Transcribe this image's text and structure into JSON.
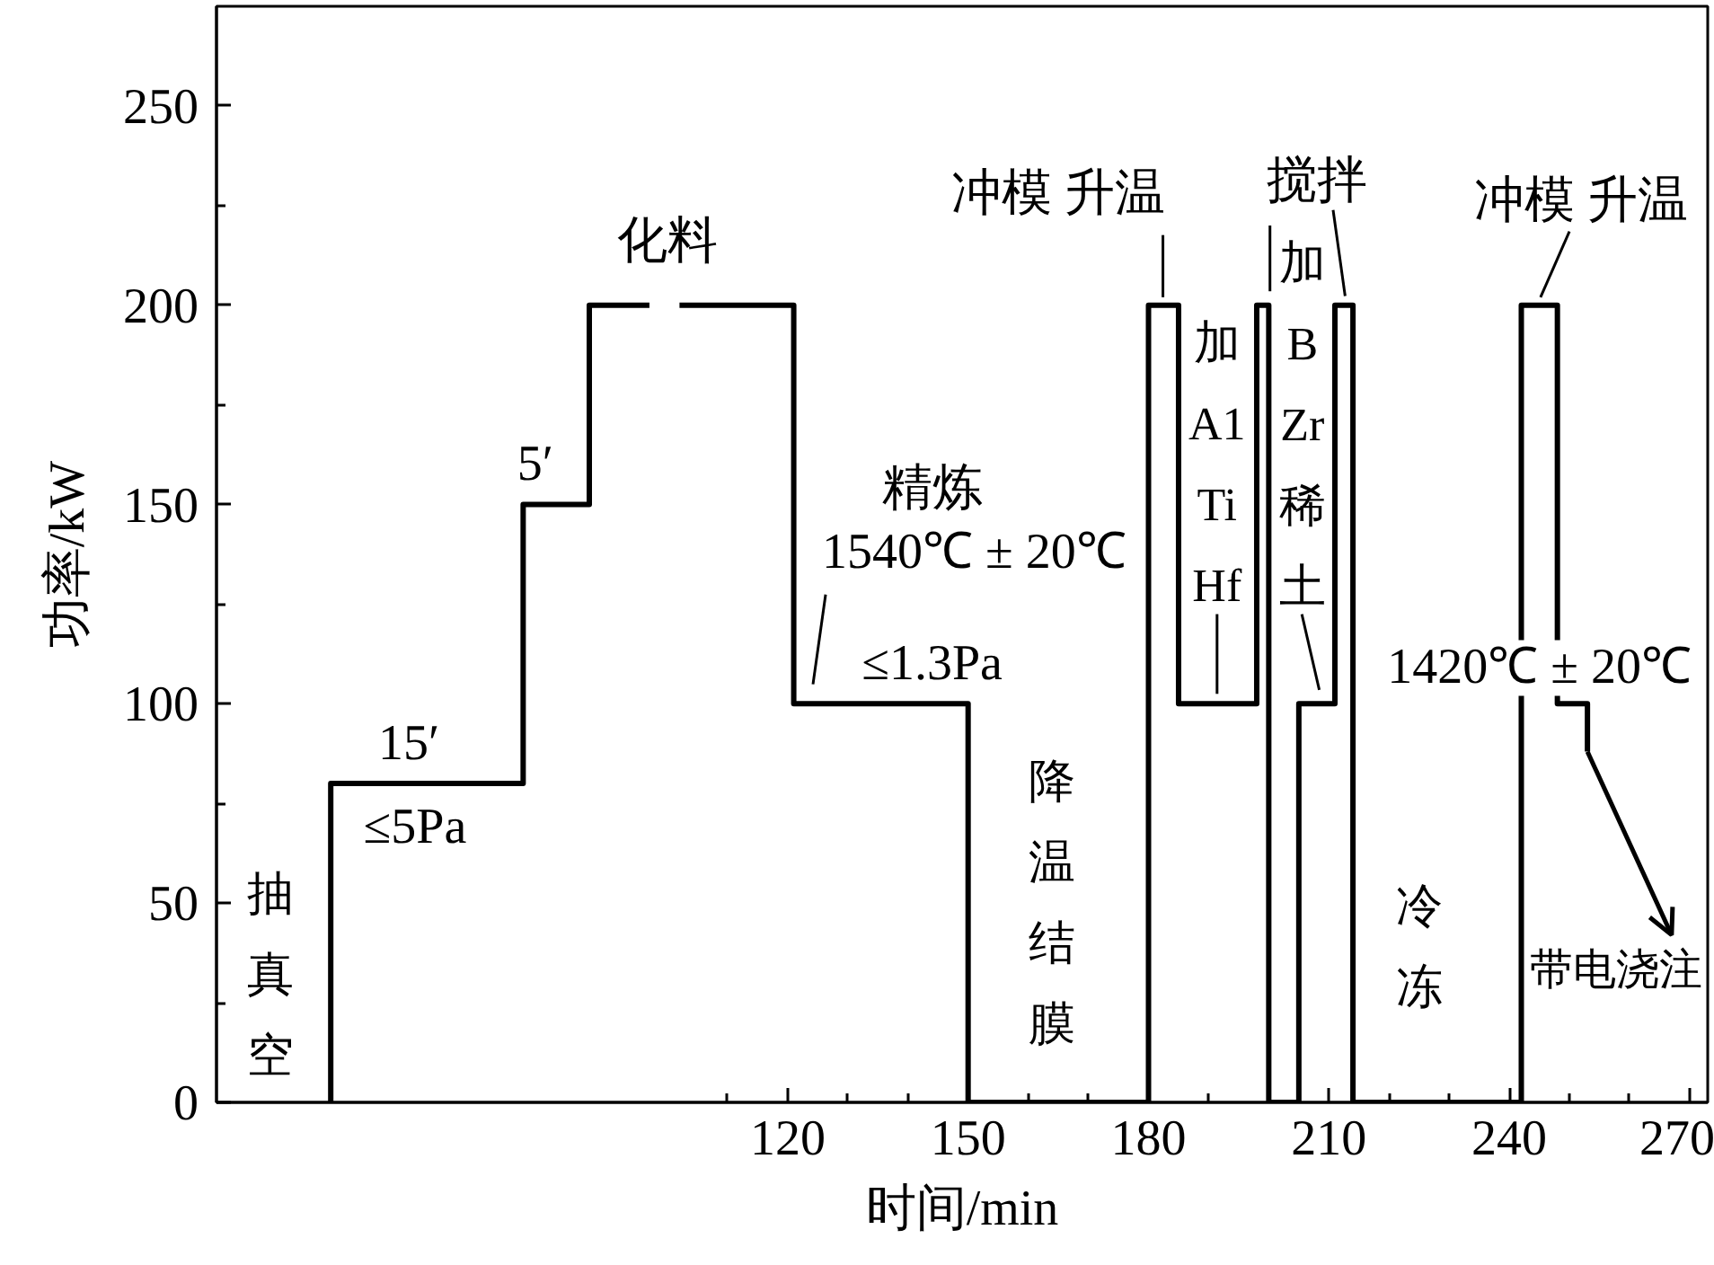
{
  "chart_data": {
    "type": "line",
    "xlabel": "时间/min",
    "ylabel": "功率/kW",
    "xlim": [
      25,
      273
    ],
    "ylim": [
      0,
      275
    ],
    "xticks": [
      {
        "value": 110,
        "label": null
      },
      120,
      {
        "value": 130,
        "label": null
      },
      {
        "value": 140,
        "label": null
      },
      150,
      {
        "value": 160,
        "label": null
      },
      {
        "value": 170,
        "label": null
      },
      180,
      {
        "value": 190,
        "label": null
      },
      {
        "value": 200,
        "label": null
      },
      210,
      {
        "value": 220,
        "label": null
      },
      {
        "value": 230,
        "label": null
      },
      240,
      {
        "value": 250,
        "label": null
      },
      {
        "value": 260,
        "label": null
      },
      270
    ],
    "yticks": [
      0,
      {
        "value": 25,
        "label": null
      },
      50,
      {
        "value": 75,
        "label": null
      },
      100,
      {
        "value": 125,
        "label": null
      },
      150,
      {
        "value": 175,
        "label": null
      },
      200,
      {
        "value": 225,
        "label": null
      },
      250
    ],
    "color": "#000000",
    "line_style": "solid",
    "x": [
      44,
      44,
      76,
      76,
      87,
      87,
      97,
      100,
      102,
      121,
      121,
      150,
      150,
      180,
      180,
      185,
      185,
      198,
      198,
      200,
      200,
      205,
      205,
      211,
      211,
      214,
      214,
      242,
      242,
      248,
      248,
      253,
      253
    ],
    "values": [
      0,
      80,
      80,
      150,
      150,
      200,
      200,
      null,
      200,
      200,
      100,
      100,
      0,
      0,
      200,
      200,
      100,
      100,
      200,
      200,
      0,
      0,
      100,
      100,
      200,
      200,
      0,
      0,
      200,
      200,
      100,
      100,
      88
    ],
    "annotations": [
      "抽真空",
      "15′",
      "≤5Pa",
      "5′",
      "化料",
      "精炼",
      "1540℃ ± 20℃",
      "≤1.3Pa",
      "降温结膜",
      "冲模 升温",
      "加 A1 Ti Hf",
      "搅拌",
      "加 B Zr 稀土",
      "冲模 升温",
      "1420℃ ± 20℃",
      "冷冻",
      {
        "text": "带电浇注",
        "x": 253,
        "y": 88
      }
    ]
  }
}
